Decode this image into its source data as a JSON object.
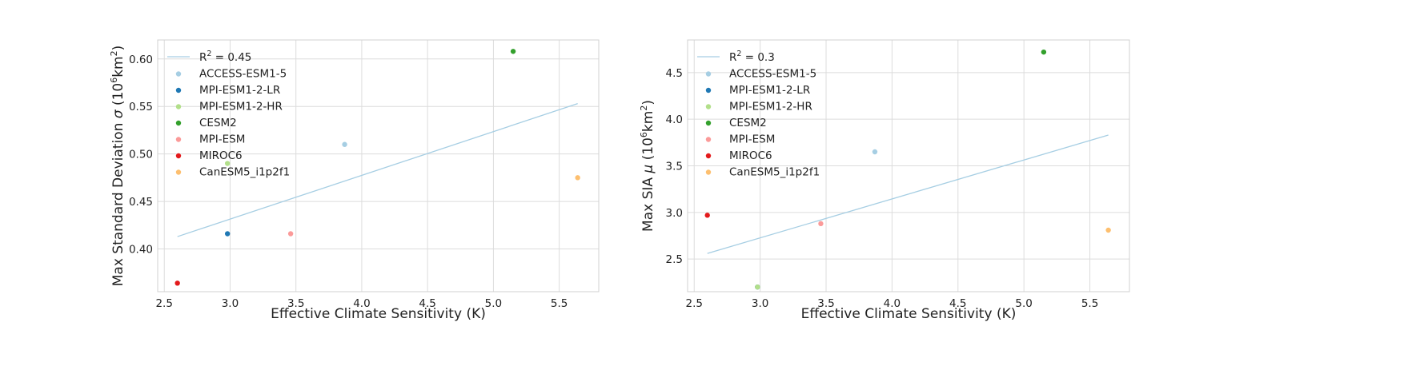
{
  "chart_data": [
    {
      "type": "scatter",
      "xlabel": "Effective Climate Sensitivity (K)",
      "ylabel_main": "Max Standard Deviation ",
      "ylabel_symbol": "σ",
      "ylabel_unit_pre": " (10",
      "ylabel_unit_exp": "6",
      "ylabel_unit_mid": "km",
      "ylabel_unit_exp2": "2",
      "ylabel_unit_post": ")",
      "xlim": [
        2.45,
        5.8
      ],
      "ylim": [
        0.355,
        0.62
      ],
      "x_ticks": [
        2.5,
        3.0,
        3.5,
        4.0,
        4.5,
        5.0,
        5.5
      ],
      "x_tick_labels": [
        "2.5",
        "3.0",
        "3.5",
        "4.0",
        "4.5",
        "5.0",
        "5.5"
      ],
      "y_ticks": [
        0.4,
        0.45,
        0.5,
        0.55,
        0.6
      ],
      "y_tick_labels": [
        "0.40",
        "0.45",
        "0.50",
        "0.55",
        "0.60"
      ],
      "grid": true,
      "legend_position": "upper-left",
      "fit_line": {
        "label_pre": "R",
        "label_exp": "2",
        "label_post": " = 0.45",
        "color": "#a6cee3",
        "x": [
          2.6,
          5.64
        ],
        "y": [
          0.413,
          0.553
        ]
      },
      "series": [
        {
          "name": "ACCESS-ESM1-5",
          "color": "#a6cee3",
          "x": 3.87,
          "y": 0.51
        },
        {
          "name": "MPI-ESM1-2-LR",
          "color": "#1f78b4",
          "x": 2.98,
          "y": 0.416
        },
        {
          "name": "MPI-ESM1-2-HR",
          "color": "#b2df8a",
          "x": 2.98,
          "y": 0.49
        },
        {
          "name": "CESM2",
          "color": "#33a02c",
          "x": 5.15,
          "y": 0.608
        },
        {
          "name": "MPI-ESM",
          "color": "#fb9a99",
          "x": 3.46,
          "y": 0.416
        },
        {
          "name": "MIROC6",
          "color": "#e31a1c",
          "x": 2.6,
          "y": 0.364
        },
        {
          "name": "CanESM5_i1p2f1",
          "color": "#fdbf6f",
          "x": 5.64,
          "y": 0.475
        }
      ]
    },
    {
      "type": "scatter",
      "xlabel": "Effective Climate Sensitivity (K)",
      "ylabel_main": "Max SIA ",
      "ylabel_symbol": "μ",
      "ylabel_unit_pre": " (10",
      "ylabel_unit_exp": "6",
      "ylabel_unit_mid": "km",
      "ylabel_unit_exp2": "2",
      "ylabel_unit_post": ")",
      "xlim": [
        2.45,
        5.8
      ],
      "ylim": [
        2.15,
        4.85
      ],
      "x_ticks": [
        2.5,
        3.0,
        3.5,
        4.0,
        4.5,
        5.0,
        5.5
      ],
      "x_tick_labels": [
        "2.5",
        "3.0",
        "3.5",
        "4.0",
        "4.5",
        "5.0",
        "5.5"
      ],
      "y_ticks": [
        2.5,
        3.0,
        3.5,
        4.0,
        4.5
      ],
      "y_tick_labels": [
        "2.5",
        "3.0",
        "3.5",
        "4.0",
        "4.5"
      ],
      "grid": true,
      "legend_position": "upper-left",
      "fit_line": {
        "label_pre": "R",
        "label_exp": "2",
        "label_post": " = 0.3",
        "color": "#a6cee3",
        "x": [
          2.6,
          5.64
        ],
        "y": [
          2.56,
          3.83
        ]
      },
      "series": [
        {
          "name": "ACCESS-ESM1-5",
          "color": "#a6cee3",
          "x": 3.87,
          "y": 3.65
        },
        {
          "name": "MPI-ESM1-2-LR",
          "color": "#1f78b4",
          "x": 2.98,
          "y": 2.2
        },
        {
          "name": "MPI-ESM1-2-HR",
          "color": "#b2df8a",
          "x": 2.98,
          "y": 2.2
        },
        {
          "name": "CESM2",
          "color": "#33a02c",
          "x": 5.15,
          "y": 4.72
        },
        {
          "name": "MPI-ESM",
          "color": "#fb9a99",
          "x": 3.46,
          "y": 2.88
        },
        {
          "name": "MIROC6",
          "color": "#e31a1c",
          "x": 2.6,
          "y": 2.97
        },
        {
          "name": "CanESM5_i1p2f1",
          "color": "#fdbf6f",
          "x": 5.64,
          "y": 2.81
        }
      ]
    }
  ]
}
